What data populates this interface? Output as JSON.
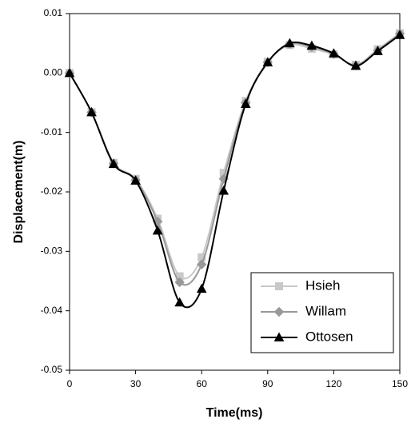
{
  "chart_data": {
    "type": "line",
    "x_label": "Time(ms)",
    "y_label": "Displacement(m)",
    "x": [
      0,
      10,
      20,
      30,
      40,
      50,
      60,
      70,
      80,
      90,
      100,
      110,
      120,
      130,
      140,
      150
    ],
    "series": [
      {
        "name": "Hsieh",
        "color": "#c8c8c8",
        "marker": "square",
        "values": [
          0,
          -0.0066,
          -0.0151,
          -0.0178,
          -0.0245,
          -0.0342,
          -0.031,
          -0.0168,
          -0.0047,
          0.0019,
          0.0047,
          0.0041,
          0.0031,
          0.0014,
          0.004,
          0.0067
        ]
      },
      {
        "name": "Willam",
        "color": "#999999",
        "marker": "diamond",
        "values": [
          0,
          -0.0066,
          -0.0152,
          -0.018,
          -0.025,
          -0.0352,
          -0.0322,
          -0.0178,
          -0.005,
          0.0018,
          0.0049,
          0.0044,
          0.0032,
          0.0013,
          0.0038,
          0.0066
        ]
      },
      {
        "name": "Ottosen",
        "color": "#000000",
        "marker": "triangle",
        "values": [
          0,
          -0.0066,
          -0.0153,
          -0.0181,
          -0.0265,
          -0.0386,
          -0.0363,
          -0.0198,
          -0.0052,
          0.0018,
          0.005,
          0.0046,
          0.0033,
          0.0012,
          0.0037,
          0.0064
        ]
      }
    ],
    "xlim": [
      0,
      150
    ],
    "xticks": [
      0,
      30,
      60,
      90,
      120,
      150
    ],
    "ylim": [
      -0.05,
      0.01
    ],
    "yticks": [
      0.01,
      {
        "value": 0,
        "label": "0.00"
      },
      -0.01,
      -0.02,
      -0.03,
      -0.04,
      -0.05
    ],
    "legend": "lower right"
  }
}
